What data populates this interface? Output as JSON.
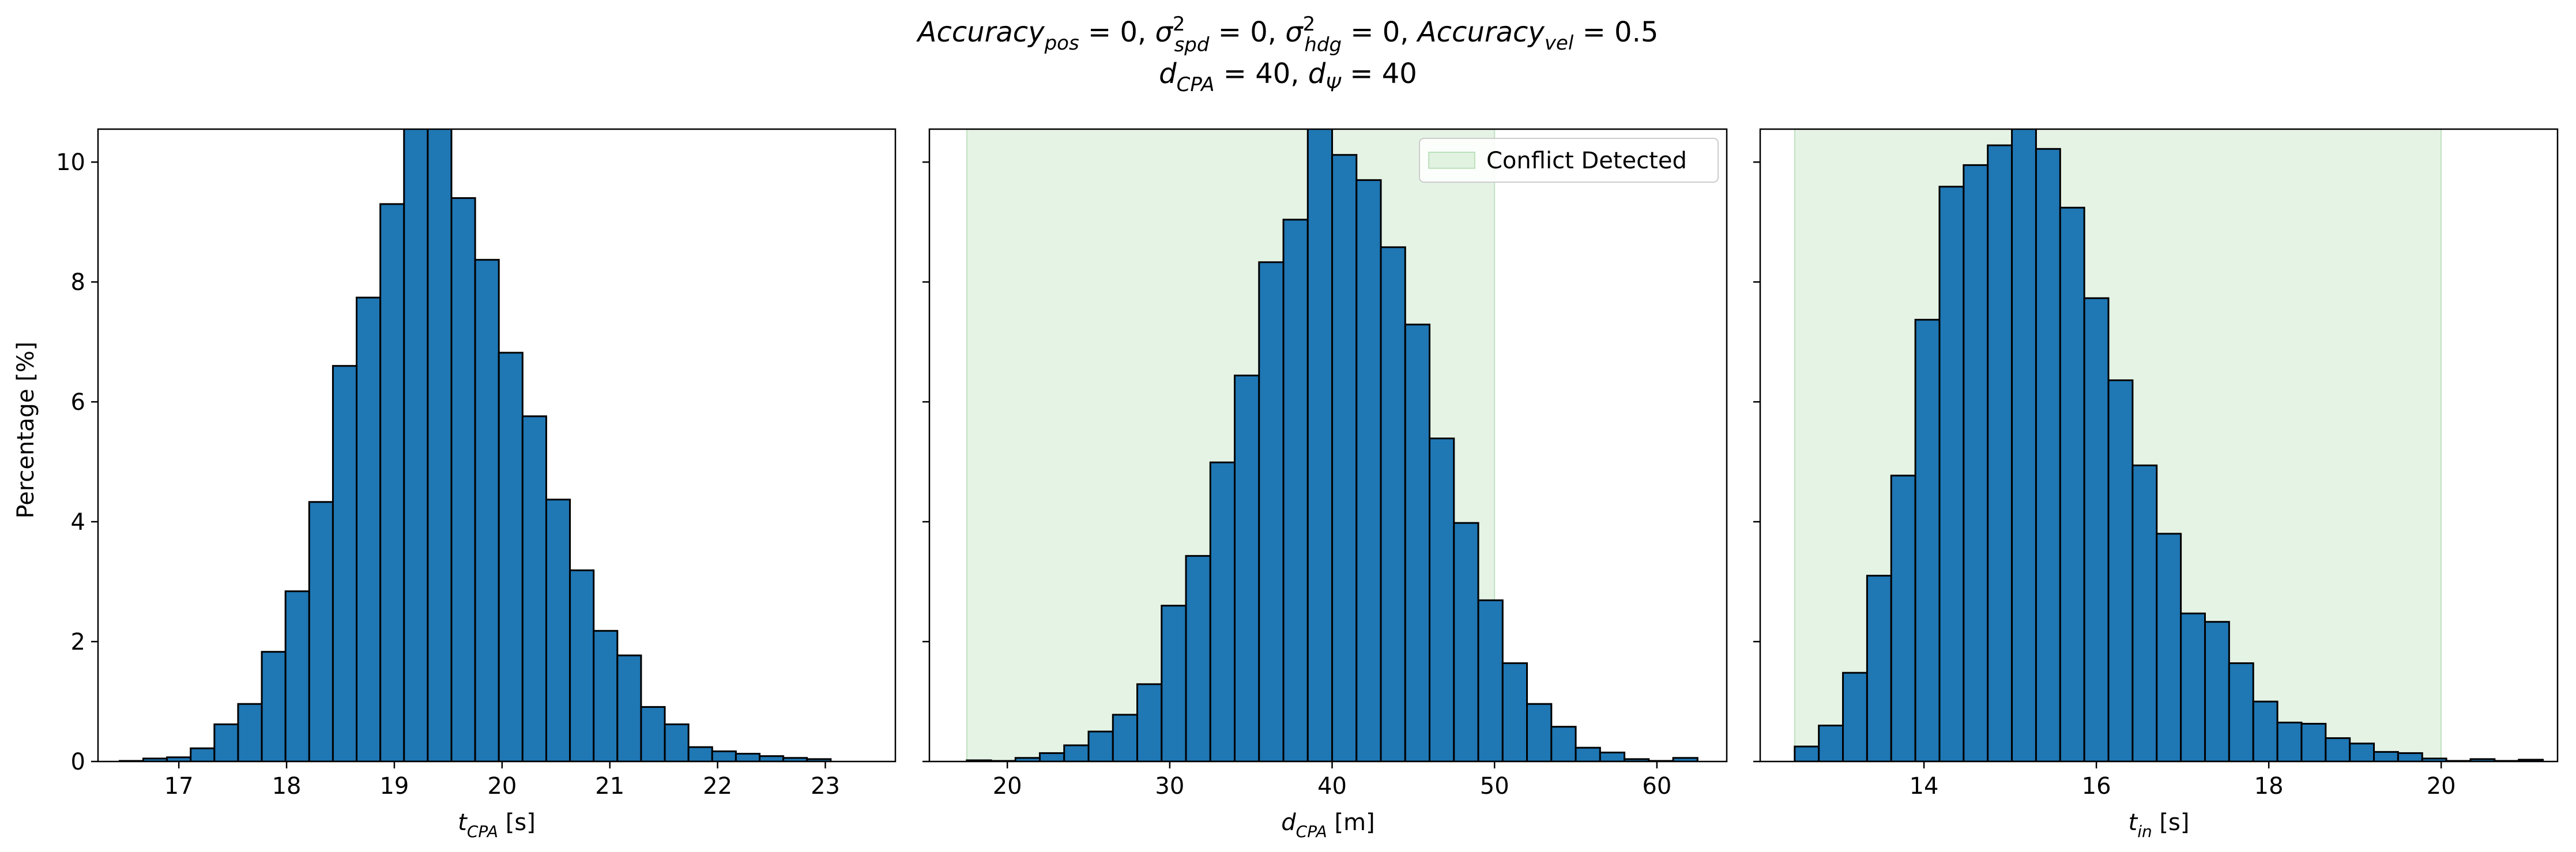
{
  "figure": {
    "title_line1": "Accuracy_pos = 0, σ²_spd = 0, σ²_hdg = 0, Accuracy_vel = 0.5",
    "title_line2": "d_CPA = 40, d_Ψ = 40",
    "shared_ylabel": "Percentage [%]",
    "bar_color": "#1f77b4",
    "edge_color": "#000000",
    "shade_color": "#2ca02c"
  },
  "chart_data": [
    {
      "type": "bar",
      "xlabel": "t_CPA [s]",
      "ylabel": "Percentage [%]",
      "xlim": [
        16.25,
        23.65
      ],
      "ylim": [
        0,
        10.55
      ],
      "xticks": [
        17,
        18,
        19,
        20,
        21,
        22,
        23
      ],
      "yticks": [
        0,
        2,
        4,
        6,
        8,
        10
      ],
      "bin_start": 16.45,
      "bin_width": 0.22,
      "values": [
        0.01,
        0.05,
        0.07,
        0.22,
        0.62,
        0.96,
        1.83,
        2.84,
        4.33,
        6.6,
        7.74,
        9.3,
        10.6,
        10.6,
        9.4,
        8.37,
        6.82,
        5.76,
        4.37,
        3.19,
        2.18,
        1.77,
        0.91,
        0.62,
        0.24,
        0.17,
        0.13,
        0.09,
        0.06,
        0.04
      ],
      "shaded_region": null
    },
    {
      "type": "bar",
      "xlabel": "d_CPA [m]",
      "ylabel": "",
      "xlim": [
        15.2,
        64.3
      ],
      "ylim": [
        0,
        10.55
      ],
      "xticks": [
        20,
        30,
        40,
        50,
        60
      ],
      "yticks": [
        0,
        2,
        4,
        6,
        8,
        10
      ],
      "bin_start": 17.5,
      "bin_width": 1.5,
      "values": [
        0.02,
        0.01,
        0.06,
        0.14,
        0.27,
        0.5,
        0.78,
        1.29,
        2.6,
        3.43,
        4.99,
        6.44,
        8.33,
        9.04,
        10.6,
        10.12,
        9.7,
        8.58,
        7.29,
        5.39,
        3.98,
        2.69,
        1.64,
        0.96,
        0.58,
        0.23,
        0.15,
        0.04,
        0.01,
        0.06
      ],
      "shaded_region": [
        17.5,
        50
      ],
      "legend": {
        "label": "Conflict Detected",
        "position": "upper right"
      }
    },
    {
      "type": "bar",
      "xlabel": "t_in [s]",
      "ylabel": "",
      "xlim": [
        12.1,
        21.35
      ],
      "ylim": [
        0,
        10.55
      ],
      "xticks": [
        14,
        16,
        18,
        20
      ],
      "yticks": [
        0,
        2,
        4,
        6,
        8,
        10
      ],
      "bin_start": 12.5,
      "bin_width": 0.28,
      "values": [
        0.25,
        0.6,
        1.48,
        3.1,
        4.77,
        7.37,
        9.59,
        9.95,
        10.28,
        10.6,
        10.22,
        9.24,
        7.73,
        6.36,
        4.94,
        3.8,
        2.47,
        2.33,
        1.64,
        1.0,
        0.65,
        0.63,
        0.39,
        0.3,
        0.16,
        0.14,
        0.05,
        0.01,
        0.04,
        0.01,
        0.03
      ],
      "shaded_region": [
        12.5,
        20.0
      ]
    }
  ]
}
